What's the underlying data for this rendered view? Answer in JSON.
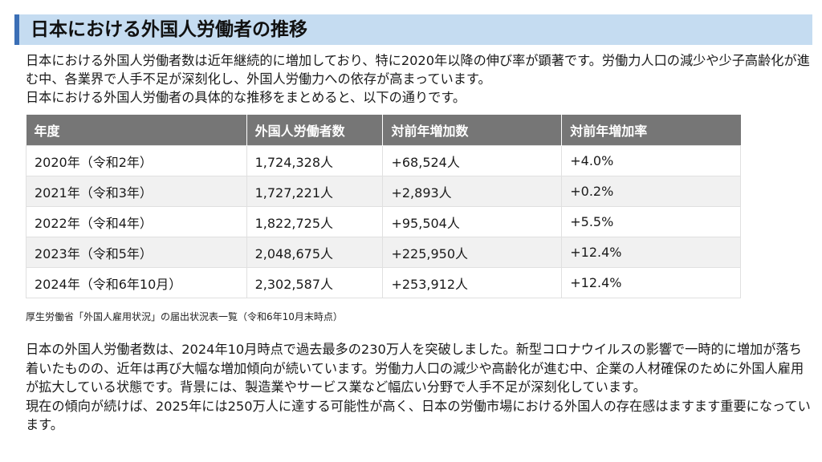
{
  "title": "日本における外国人労働者の推移",
  "intro": [
    "日本における外国人労働者数は近年継続的に増加しており、特に2020年以降の伸び率が顕著です。労働力人口の減少や少子高齢化が進む中、各業界で人手不足が深刻化し、外国人労働力への依存が高まっています。",
    "日本における外国人労働者の具体的な推移をまとめると、以下の通りです。"
  ],
  "table": {
    "headers": [
      "年度",
      "外国人労働者数",
      "対前年増加数",
      "対前年増加率"
    ],
    "rows": [
      [
        "2020年（令和2年）",
        "1,724,328人",
        "+68,524人",
        "+4.0%"
      ],
      [
        "2021年（令和3年）",
        "1,727,221人",
        "+2,893人",
        "+0.2%"
      ],
      [
        "2022年（令和4年）",
        "1,822,725人",
        "+95,504人",
        "+5.5%"
      ],
      [
        "2023年（令和5年）",
        "2,048,675人",
        "+225,950人",
        "+12.4%"
      ],
      [
        "2024年（令和6年10月）",
        "2,302,587人",
        "+253,912人",
        "+12.4%"
      ]
    ]
  },
  "source": "厚生労働省「外国人雇用状況」の届出状況表一覧（令和6年10月末時点）",
  "outro": [
    "日本の外国人労働者数は、2024年10月時点で過去最多の230万人を突破しました。新型コロナウイルスの影響で一時的に増加が落ち着いたものの、近年は再び大幅な増加傾向が続いています。労働力人口の減少や高齢化が進む中、企業の人材確保のために外国人雇用が拡大している状態です。背景には、製造業やサービス業など幅広い分野で人手不足が深刻化しています。",
    "現在の傾向が続けば、2025年には250万人に達する可能性が高く、日本の労働市場における外国人の存在感はますます重要になっています。"
  ],
  "colors": {
    "title_bg": "#c5dcf1",
    "title_accent": "#3b6fb6",
    "header_bg": "#767676",
    "row_alt": "#f1f1f1"
  }
}
